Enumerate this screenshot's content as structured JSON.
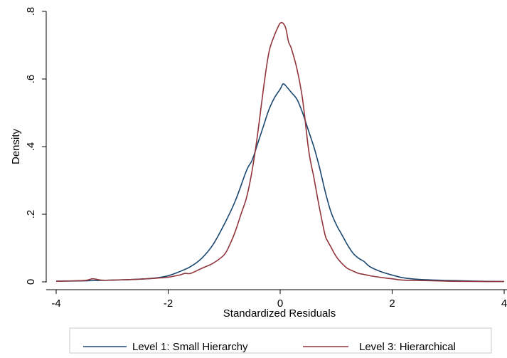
{
  "chart_data": {
    "type": "line",
    "title": "",
    "xlabel": "Standardized Residuals",
    "ylabel": "Density",
    "xlim": [
      -4,
      4
    ],
    "ylim": [
      0,
      0.8
    ],
    "x_ticks": [
      "-4",
      "-2",
      "0",
      "2",
      "4"
    ],
    "x_tick_values": [
      -4,
      -2,
      0,
      2,
      4
    ],
    "y_ticks": [
      "0",
      ".2",
      ".4",
      ".6",
      ".8"
    ],
    "y_tick_values": [
      0,
      0.2,
      0.4,
      0.6,
      0.8
    ],
    "grid": false,
    "legend_position": "bottom",
    "series": [
      {
        "name": "Level 1: Small Hierarchy",
        "color": "#1a476f",
        "points": [
          [
            -4.0,
            0.002
          ],
          [
            -3.5,
            0.003
          ],
          [
            -3.0,
            0.005
          ],
          [
            -2.5,
            0.008
          ],
          [
            -2.2,
            0.012
          ],
          [
            -2.0,
            0.018
          ],
          [
            -1.8,
            0.03
          ],
          [
            -1.6,
            0.045
          ],
          [
            -1.4,
            0.07
          ],
          [
            -1.2,
            0.11
          ],
          [
            -1.0,
            0.17
          ],
          [
            -0.8,
            0.24
          ],
          [
            -0.6,
            0.33
          ],
          [
            -0.5,
            0.36
          ],
          [
            -0.4,
            0.41
          ],
          [
            -0.3,
            0.46
          ],
          [
            -0.2,
            0.51
          ],
          [
            -0.1,
            0.545
          ],
          [
            0.0,
            0.57
          ],
          [
            0.05,
            0.585
          ],
          [
            0.1,
            0.58
          ],
          [
            0.2,
            0.56
          ],
          [
            0.3,
            0.54
          ],
          [
            0.4,
            0.5
          ],
          [
            0.5,
            0.45
          ],
          [
            0.6,
            0.4
          ],
          [
            0.7,
            0.34
          ],
          [
            0.8,
            0.27
          ],
          [
            0.9,
            0.21
          ],
          [
            1.0,
            0.17
          ],
          [
            1.1,
            0.14
          ],
          [
            1.2,
            0.11
          ],
          [
            1.3,
            0.085
          ],
          [
            1.4,
            0.07
          ],
          [
            1.5,
            0.06
          ],
          [
            1.6,
            0.045
          ],
          [
            1.8,
            0.03
          ],
          [
            2.0,
            0.02
          ],
          [
            2.2,
            0.012
          ],
          [
            2.5,
            0.007
          ],
          [
            3.0,
            0.004
          ],
          [
            3.5,
            0.002
          ],
          [
            4.0,
            0.001
          ]
        ]
      },
      {
        "name": "Level 3: Hierarchical",
        "color": "#90353b",
        "points": [
          [
            -4.0,
            0.002
          ],
          [
            -3.5,
            0.004
          ],
          [
            -3.35,
            0.009
          ],
          [
            -3.2,
            0.005
          ],
          [
            -3.0,
            0.005
          ],
          [
            -2.5,
            0.008
          ],
          [
            -2.2,
            0.011
          ],
          [
            -2.0,
            0.014
          ],
          [
            -1.8,
            0.02
          ],
          [
            -1.7,
            0.025
          ],
          [
            -1.6,
            0.025
          ],
          [
            -1.4,
            0.04
          ],
          [
            -1.2,
            0.055
          ],
          [
            -1.0,
            0.08
          ],
          [
            -0.9,
            0.11
          ],
          [
            -0.8,
            0.15
          ],
          [
            -0.7,
            0.2
          ],
          [
            -0.6,
            0.25
          ],
          [
            -0.5,
            0.33
          ],
          [
            -0.4,
            0.44
          ],
          [
            -0.3,
            0.57
          ],
          [
            -0.2,
            0.68
          ],
          [
            -0.1,
            0.73
          ],
          [
            -0.05,
            0.75
          ],
          [
            0.0,
            0.765
          ],
          [
            0.05,
            0.765
          ],
          [
            0.1,
            0.75
          ],
          [
            0.15,
            0.71
          ],
          [
            0.2,
            0.69
          ],
          [
            0.3,
            0.63
          ],
          [
            0.4,
            0.54
          ],
          [
            0.5,
            0.4
          ],
          [
            0.55,
            0.35
          ],
          [
            0.6,
            0.31
          ],
          [
            0.7,
            0.22
          ],
          [
            0.8,
            0.14
          ],
          [
            0.85,
            0.12
          ],
          [
            0.9,
            0.105
          ],
          [
            1.0,
            0.075
          ],
          [
            1.1,
            0.055
          ],
          [
            1.2,
            0.04
          ],
          [
            1.3,
            0.032
          ],
          [
            1.4,
            0.025
          ],
          [
            1.5,
            0.022
          ],
          [
            1.6,
            0.018
          ],
          [
            1.8,
            0.013
          ],
          [
            2.0,
            0.009
          ],
          [
            2.2,
            0.005
          ],
          [
            2.5,
            0.004
          ],
          [
            3.0,
            0.002
          ],
          [
            3.5,
            0.001
          ],
          [
            4.0,
            0.001
          ]
        ]
      }
    ]
  }
}
